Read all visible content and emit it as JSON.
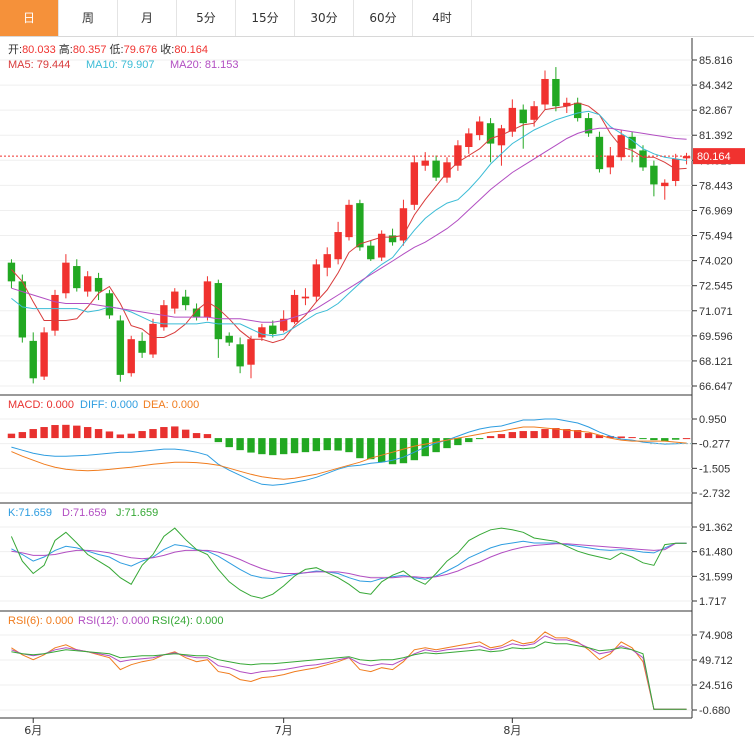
{
  "tabs": [
    "日",
    "周",
    "月",
    "5分",
    "15分",
    "30分",
    "60分",
    "4时"
  ],
  "active_tab": 0,
  "colors": {
    "up": "#f0322f",
    "down": "#22a822",
    "ma5": "#d83b3b",
    "ma10": "#3bbcd6",
    "ma20": "#b24ec2",
    "macd": "#e8312f",
    "diff": "#2e9de0",
    "dea": "#f07c1e",
    "k": "#2e9de0",
    "d": "#b24ec2",
    "j": "#36a836",
    "rsi6": "#f07c1e",
    "rsi12": "#b24ec2",
    "rsi24": "#36a836"
  },
  "legend": {
    "open_label": "开:",
    "open": "80.033",
    "high_label": "高:",
    "high": "80.357",
    "low_label": "低:",
    "low": "79.676",
    "close_label": "收:",
    "close": "80.164",
    "ma5": "MA5: 79.444",
    "ma10": "MA10: 79.907",
    "ma20": "MA20: 81.153",
    "macd": "MACD: 0.000",
    "diff": "DIFF: 0.000",
    "dea": "DEA: 0.000",
    "k": "K:71.659",
    "d": "D:71.659",
    "j": "J:71.659",
    "rsi6": "RSI(6): 0.000",
    "rsi12": "RSI(12): 0.000",
    "rsi24": "RSI(24): 0.000"
  },
  "last_price": "80.164",
  "x_labels": [
    {
      "text": "6月",
      "index": 2
    },
    {
      "text": "7月",
      "index": 25
    },
    {
      "text": "8月",
      "index": 46
    }
  ],
  "chart_data": [
    {
      "type": "candlestick",
      "y_ticks": [
        "85.816",
        "84.342",
        "82.867",
        "81.392",
        "79.918",
        "78.443",
        "76.969",
        "75.494",
        "74.020",
        "72.545",
        "71.071",
        "69.596",
        "68.121",
        "66.647"
      ],
      "ylim": [
        65.9,
        86.55
      ],
      "candles": [
        [
          73.9,
          72.8,
          74.1,
          72.4
        ],
        [
          72.8,
          69.5,
          73.2,
          69.2
        ],
        [
          69.3,
          67.1,
          69.8,
          66.8
        ],
        [
          67.2,
          69.8,
          70.1,
          67.0
        ],
        [
          69.9,
          72.0,
          72.3,
          69.6
        ],
        [
          72.1,
          73.9,
          74.4,
          71.8
        ],
        [
          73.7,
          72.4,
          74.1,
          72.2
        ],
        [
          72.2,
          73.1,
          73.4,
          71.9
        ],
        [
          73.0,
          72.2,
          73.3,
          71.7
        ],
        [
          72.1,
          70.8,
          72.3,
          70.6
        ],
        [
          70.5,
          67.3,
          70.8,
          66.9
        ],
        [
          67.4,
          69.4,
          69.6,
          67.2
        ],
        [
          69.3,
          68.6,
          69.8,
          68.3
        ],
        [
          68.5,
          70.3,
          70.6,
          68.3
        ],
        [
          70.1,
          71.4,
          71.7,
          69.9
        ],
        [
          71.2,
          72.2,
          72.4,
          70.9
        ],
        [
          71.9,
          71.4,
          72.3,
          71.1
        ],
        [
          71.2,
          70.7,
          71.5,
          70.5
        ],
        [
          70.7,
          72.8,
          73.1,
          70.5
        ],
        [
          72.7,
          69.4,
          72.9,
          68.3
        ],
        [
          69.6,
          69.2,
          69.8,
          69.0
        ],
        [
          69.1,
          67.8,
          69.5,
          67.4
        ],
        [
          67.9,
          69.4,
          69.6,
          67.1
        ],
        [
          69.5,
          70.1,
          70.3,
          69.3
        ],
        [
          70.2,
          69.7,
          70.5,
          69.5
        ],
        [
          69.9,
          70.6,
          71.1,
          69.8
        ],
        [
          70.4,
          72.0,
          72.3,
          70.3
        ],
        [
          71.8,
          71.9,
          72.4,
          71.4
        ],
        [
          71.9,
          73.8,
          74.1,
          71.6
        ],
        [
          73.6,
          74.4,
          74.8,
          73.1
        ],
        [
          74.1,
          75.7,
          76.3,
          73.8
        ],
        [
          75.4,
          77.3,
          77.6,
          75.2
        ],
        [
          77.4,
          74.8,
          77.6,
          74.6
        ],
        [
          74.9,
          74.1,
          75.2,
          74.0
        ],
        [
          74.2,
          75.6,
          75.8,
          74.0
        ],
        [
          75.5,
          75.1,
          75.9,
          74.9
        ],
        [
          75.2,
          77.1,
          77.6,
          74.9
        ],
        [
          77.3,
          79.8,
          80.2,
          77.0
        ],
        [
          79.6,
          79.9,
          80.4,
          79.3
        ],
        [
          79.9,
          78.9,
          80.2,
          78.7
        ],
        [
          78.9,
          79.8,
          80.1,
          78.6
        ],
        [
          79.6,
          80.8,
          81.1,
          79.3
        ],
        [
          80.7,
          81.5,
          81.8,
          80.3
        ],
        [
          81.4,
          82.2,
          82.5,
          81.1
        ],
        [
          82.1,
          80.9,
          82.4,
          79.8
        ],
        [
          80.8,
          81.8,
          82.0,
          79.6
        ],
        [
          81.6,
          83.0,
          83.5,
          81.3
        ],
        [
          82.9,
          82.1,
          83.2,
          80.6
        ],
        [
          82.3,
          83.1,
          83.4,
          81.9
        ],
        [
          83.2,
          84.7,
          85.2,
          82.9
        ],
        [
          84.7,
          83.1,
          85.4,
          82.8
        ],
        [
          83.1,
          83.3,
          83.6,
          82.7
        ],
        [
          83.3,
          82.4,
          83.6,
          82.2
        ],
        [
          82.4,
          81.5,
          82.7,
          81.3
        ],
        [
          81.3,
          79.4,
          81.6,
          79.2
        ],
        [
          79.5,
          80.2,
          80.7,
          79.1
        ],
        [
          80.1,
          81.4,
          81.7,
          79.9
        ],
        [
          81.3,
          80.6,
          81.6,
          79.8
        ],
        [
          80.5,
          79.5,
          80.8,
          79.3
        ],
        [
          79.6,
          78.5,
          79.9,
          77.8
        ],
        [
          78.4,
          78.6,
          78.8,
          77.6
        ],
        [
          78.7,
          80.0,
          80.3,
          78.4
        ],
        [
          80.033,
          80.164,
          80.357,
          79.676
        ]
      ],
      "ma5": [
        73.5,
        72.8,
        71.6,
        70.5,
        70.5,
        70.5,
        70.6,
        71.3,
        72.1,
        72.5,
        71.5,
        70.2,
        70.0,
        69.5,
        69.5,
        69.8,
        70.3,
        71.1,
        71.6,
        71.2,
        70.6,
        69.9,
        69.4,
        69.4,
        69.2,
        69.4,
        70.2,
        70.8,
        71.6,
        72.3,
        73.3,
        74.5,
        75.0,
        75.2,
        75.4,
        75.4,
        75.5,
        76.7,
        77.6,
        78.4,
        79.2,
        79.8,
        80.2,
        80.6,
        81.2,
        81.4,
        81.7,
        82.0,
        82.1,
        82.9,
        83.0,
        83.1,
        83.3,
        83.1,
        82.6,
        81.5,
        80.7,
        80.5,
        80.1,
        80.1,
        79.8,
        79.4,
        79.444
      ],
      "ma10": [
        71.8,
        71.3,
        71.2,
        71.2,
        71.2,
        71.2,
        71.2,
        71.0,
        71.1,
        71.3,
        71.2,
        71.0,
        70.7,
        70.4,
        70.3,
        70.3,
        70.3,
        70.3,
        70.4,
        70.3,
        70.3,
        70.3,
        70.0,
        69.7,
        69.6,
        69.7,
        70.1,
        70.5,
        70.9,
        71.1,
        71.5,
        72.1,
        72.7,
        73.3,
        73.8,
        74.2,
        75.0,
        75.8,
        76.5,
        77.0,
        77.4,
        77.6,
        78.2,
        78.9,
        79.7,
        80.3,
        80.9,
        81.3,
        81.7,
        82.0,
        82.3,
        82.5,
        82.7,
        82.8,
        82.6,
        81.9,
        81.5,
        81.1,
        80.6,
        80.3,
        80.1,
        80.0,
        79.907
      ],
      "ma20": [
        72.4,
        72.2,
        72.0,
        71.8,
        71.6,
        71.5,
        71.5,
        71.5,
        71.4,
        71.3,
        71.2,
        71.1,
        71.0,
        70.9,
        70.8,
        70.7,
        70.7,
        70.7,
        70.7,
        70.6,
        70.6,
        70.6,
        70.5,
        70.4,
        70.4,
        70.5,
        70.7,
        70.9,
        71.2,
        71.6,
        72.0,
        72.4,
        72.8,
        73.2,
        73.6,
        74.0,
        74.4,
        74.8,
        75.1,
        75.5,
        75.9,
        76.4,
        77.0,
        77.6,
        78.2,
        78.7,
        79.2,
        79.6,
        80.0,
        80.4,
        80.8,
        81.2,
        81.5,
        81.7,
        81.8,
        81.8,
        81.7,
        81.6,
        81.5,
        81.4,
        81.3,
        81.2,
        81.153
      ]
    },
    {
      "type": "macd",
      "y_ticks": [
        "0.950",
        "-0.277",
        "-1.505",
        "-2.732"
      ],
      "ylim": [
        -3.3,
        1.7
      ],
      "macd": [
        0.22,
        0.3,
        0.45,
        0.55,
        0.65,
        0.66,
        0.62,
        0.55,
        0.45,
        0.33,
        0.18,
        0.22,
        0.35,
        0.45,
        0.55,
        0.58,
        0.42,
        0.25,
        0.2,
        -0.2,
        -0.45,
        -0.6,
        -0.72,
        -0.8,
        -0.85,
        -0.8,
        -0.75,
        -0.7,
        -0.65,
        -0.6,
        -0.62,
        -0.7,
        -1.0,
        -1.05,
        -1.2,
        -1.3,
        -1.25,
        -1.1,
        -0.9,
        -0.7,
        -0.5,
        -0.35,
        -0.2,
        -0.05,
        0.1,
        0.2,
        0.3,
        0.35,
        0.35,
        0.45,
        0.5,
        0.45,
        0.4,
        0.25,
        0.15,
        0.1,
        0.08,
        0.05,
        -0.05,
        -0.1,
        -0.15,
        -0.08,
        0.0
      ],
      "diff": [
        -0.45,
        -0.6,
        -0.75,
        -0.85,
        -0.9,
        -0.9,
        -0.88,
        -0.85,
        -0.8,
        -0.75,
        -0.7,
        -0.7,
        -0.65,
        -0.6,
        -0.55,
        -0.55,
        -0.6,
        -0.7,
        -0.85,
        -1.3,
        -1.6,
        -1.85,
        -2.1,
        -2.3,
        -2.35,
        -2.3,
        -2.2,
        -2.1,
        -1.95,
        -1.75,
        -1.55,
        -1.4,
        -1.35,
        -1.25,
        -1.2,
        -1.1,
        -0.95,
        -0.7,
        -0.45,
        -0.25,
        -0.1,
        0.1,
        0.3,
        0.45,
        0.55,
        0.6,
        0.75,
        0.9,
        0.9,
        0.95,
        0.95,
        0.85,
        0.75,
        0.55,
        0.3,
        0.1,
        -0.05,
        -0.1,
        -0.2,
        -0.25,
        -0.3,
        -0.28,
        -0.25
      ],
      "dea": [
        -0.67,
        -0.9,
        -1.1,
        -1.3,
        -1.45,
        -1.55,
        -1.6,
        -1.62,
        -1.6,
        -1.56,
        -1.5,
        -1.45,
        -1.38,
        -1.3,
        -1.25,
        -1.2,
        -1.2,
        -1.22,
        -1.27,
        -1.35,
        -1.5,
        -1.65,
        -1.8,
        -1.92,
        -2.0,
        -2.05,
        -2.0,
        -1.9,
        -1.8,
        -1.65,
        -1.5,
        -1.35,
        -1.2,
        -1.0,
        -0.85,
        -0.7,
        -0.55,
        -0.4,
        -0.3,
        -0.2,
        -0.1,
        0.0,
        0.1,
        0.2,
        0.3,
        0.35,
        0.45,
        0.55,
        0.55,
        0.5,
        0.45,
        0.4,
        0.35,
        0.3,
        0.15,
        0.0,
        -0.1,
        -0.15,
        -0.15,
        -0.15,
        -0.15,
        -0.2,
        -0.25
      ]
    },
    {
      "type": "kdj",
      "y_ticks": [
        "91.362",
        "61.480",
        "31.599",
        "1.717"
      ],
      "ylim": [
        -3,
        102
      ],
      "k": [
        65,
        58,
        50,
        55,
        63,
        68,
        66,
        62,
        58,
        55,
        48,
        44,
        50,
        55,
        64,
        70,
        68,
        64,
        62,
        56,
        48,
        40,
        33,
        30,
        29,
        31,
        34,
        36,
        38,
        37,
        35,
        30,
        26,
        25,
        29,
        31,
        33,
        30,
        28,
        32,
        38,
        45,
        54,
        60,
        66,
        70,
        72,
        74,
        72,
        72,
        72,
        70,
        68,
        66,
        64,
        63,
        64,
        63,
        61,
        60,
        66,
        71.659,
        71.659
      ],
      "d": [
        62,
        60,
        57,
        57,
        58,
        61,
        63,
        63,
        62,
        60,
        57,
        54,
        53,
        54,
        57,
        61,
        63,
        63,
        63,
        61,
        57,
        52,
        46,
        41,
        37,
        35,
        35,
        36,
        37,
        37,
        37,
        35,
        32,
        30,
        30,
        30,
        31,
        31,
        30,
        31,
        34,
        38,
        44,
        49,
        55,
        60,
        64,
        67,
        69,
        70,
        71,
        71,
        70,
        69,
        68,
        67,
        66,
        65,
        64,
        63,
        64,
        71.659,
        71.659
      ],
      "j": [
        80,
        50,
        35,
        45,
        75,
        85,
        72,
        58,
        50,
        42,
        30,
        22,
        45,
        58,
        80,
        90,
        76,
        64,
        58,
        40,
        25,
        15,
        8,
        5,
        10,
        20,
        32,
        40,
        42,
        36,
        30,
        22,
        12,
        10,
        25,
        33,
        38,
        28,
        22,
        35,
        50,
        60,
        75,
        82,
        88,
        90,
        88,
        85,
        78,
        76,
        74,
        68,
        62,
        58,
        55,
        52,
        60,
        55,
        48,
        45,
        70,
        71.659,
        71.659
      ]
    },
    {
      "type": "rsi",
      "y_ticks": [
        "74.908",
        "49.712",
        "24.516",
        "-0.680"
      ],
      "ylim": [
        -3,
        86
      ],
      "rsi6": [
        62,
        55,
        50,
        55,
        62,
        65,
        60,
        58,
        55,
        52,
        40,
        45,
        48,
        50,
        55,
        58,
        52,
        48,
        50,
        38,
        36,
        30,
        28,
        32,
        33,
        35,
        38,
        40,
        42,
        45,
        48,
        52,
        40,
        38,
        42,
        40,
        48,
        60,
        62,
        60,
        62,
        64,
        66,
        68,
        62,
        64,
        70,
        66,
        68,
        78,
        72,
        72,
        68,
        60,
        50,
        56,
        68,
        62,
        48,
        0,
        0,
        0,
        0
      ],
      "rsi12": [
        60,
        56,
        54,
        56,
        60,
        62,
        60,
        58,
        56,
        54,
        48,
        50,
        51,
        52,
        55,
        57,
        54,
        52,
        52,
        44,
        42,
        38,
        36,
        38,
        39,
        40,
        42,
        44,
        45,
        47,
        50,
        52,
        46,
        44,
        46,
        45,
        50,
        56,
        60,
        58,
        60,
        61,
        62,
        64,
        60,
        62,
        66,
        64,
        66,
        74,
        70,
        70,
        67,
        62,
        56,
        58,
        64,
        60,
        52,
        0,
        0,
        0,
        0
      ],
      "rsi24": [
        58,
        56,
        55,
        56,
        58,
        60,
        59,
        58,
        57,
        56,
        52,
        53,
        54,
        54,
        55,
        56,
        55,
        54,
        54,
        50,
        48,
        46,
        45,
        46,
        46,
        47,
        48,
        49,
        50,
        51,
        52,
        53,
        50,
        49,
        50,
        50,
        52,
        55,
        57,
        56,
        57,
        58,
        59,
        60,
        58,
        59,
        62,
        61,
        62,
        68,
        66,
        66,
        64,
        62,
        59,
        60,
        62,
        60,
        56,
        0,
        0,
        0,
        0
      ]
    }
  ]
}
